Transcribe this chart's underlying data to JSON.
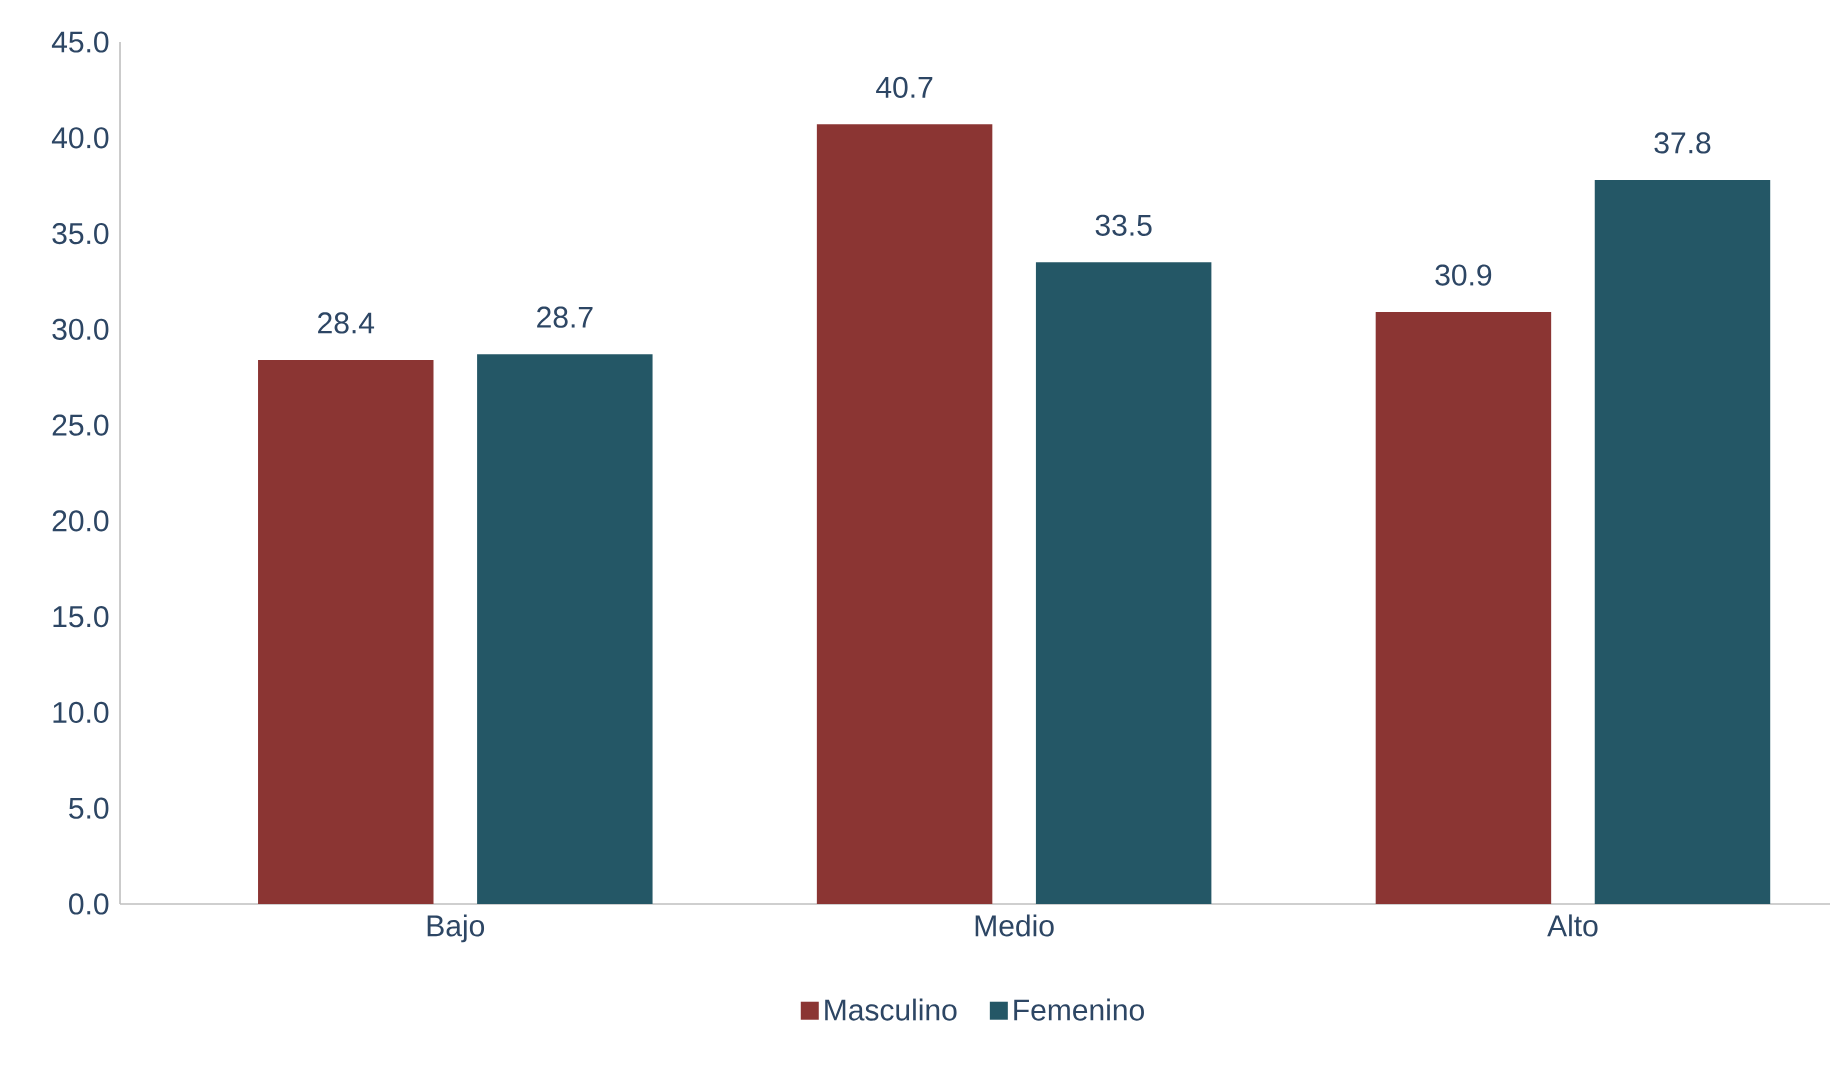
{
  "chart_data": {
    "type": "bar",
    "categories": [
      "Bajo",
      "Medio",
      "Alto"
    ],
    "series": [
      {
        "name": "Masculino",
        "color": "#8b3533",
        "values": [
          28.4,
          40.7,
          30.9
        ]
      },
      {
        "name": "Femenino",
        "color": "#245766",
        "values": [
          28.7,
          33.5,
          37.8
        ]
      }
    ],
    "ylim": [
      0,
      45
    ],
    "yticks": [
      {
        "value": 0,
        "label": "0.0"
      },
      {
        "value": 5,
        "label": "5.0"
      },
      {
        "value": 10,
        "label": "10.0"
      },
      {
        "value": 15,
        "label": "15.0"
      },
      {
        "value": 20,
        "label": "20.0"
      },
      {
        "value": 25,
        "label": "25.0"
      },
      {
        "value": 30,
        "label": "30.0"
      },
      {
        "value": 35,
        "label": "35.0"
      },
      {
        "value": 40,
        "label": "40.0"
      },
      {
        "value": 45,
        "label": "45.0"
      }
    ],
    "data_labels": true,
    "legend": "bottom",
    "grid": false
  }
}
